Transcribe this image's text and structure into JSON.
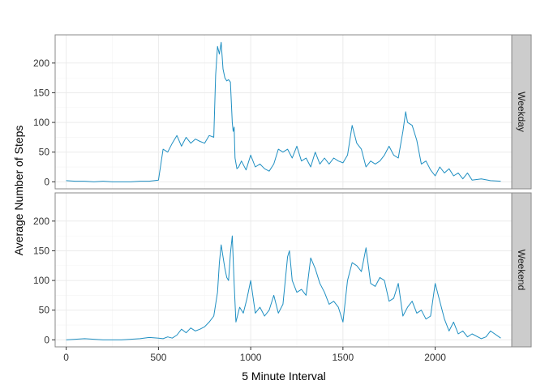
{
  "chart_data": {
    "type": "line",
    "title": "",
    "xlabel": "5 Minute Interval",
    "ylabel": "Average Number of Steps",
    "xlim": [
      -60,
      2415
    ],
    "ylim": [
      -11.8,
      247.5
    ],
    "xticks": [
      0,
      500,
      1000,
      1500,
      2000
    ],
    "yticks": [
      0,
      50,
      100,
      150,
      200
    ],
    "grid": true,
    "legend": "none",
    "colors": {
      "line": "#1f8fc2",
      "strip": "#cccccc",
      "panel_border": "#888888",
      "grid": "#ebebeb"
    },
    "panels": [
      {
        "label": "Weekday",
        "x": [
          0,
          50,
          100,
          150,
          200,
          250,
          300,
          350,
          400,
          450,
          500,
          525,
          550,
          575,
          600,
          625,
          650,
          675,
          700,
          725,
          750,
          775,
          800,
          810,
          820,
          830,
          840,
          850,
          860,
          870,
          880,
          890,
          900,
          905,
          910,
          915,
          925,
          935,
          950,
          975,
          1000,
          1025,
          1050,
          1075,
          1100,
          1125,
          1150,
          1175,
          1200,
          1225,
          1250,
          1275,
          1300,
          1325,
          1350,
          1375,
          1400,
          1425,
          1450,
          1475,
          1500,
          1525,
          1550,
          1575,
          1600,
          1625,
          1650,
          1675,
          1700,
          1725,
          1750,
          1775,
          1800,
          1825,
          1840,
          1850,
          1875,
          1900,
          1925,
          1950,
          1975,
          2000,
          2025,
          2050,
          2075,
          2100,
          2125,
          2150,
          2175,
          2200,
          2250,
          2300,
          2355
        ],
        "y": [
          2,
          1,
          1,
          0,
          1,
          0,
          0,
          0,
          1,
          1,
          3,
          55,
          50,
          65,
          78,
          60,
          75,
          65,
          72,
          68,
          65,
          78,
          75,
          180,
          228,
          215,
          235,
          190,
          175,
          170,
          172,
          168,
          100,
          85,
          92,
          40,
          22,
          25,
          35,
          20,
          45,
          25,
          30,
          22,
          18,
          30,
          55,
          50,
          55,
          40,
          60,
          35,
          40,
          25,
          50,
          30,
          40,
          30,
          40,
          35,
          32,
          45,
          95,
          65,
          55,
          25,
          35,
          30,
          35,
          45,
          60,
          45,
          40,
          85,
          118,
          100,
          95,
          70,
          30,
          35,
          20,
          10,
          25,
          15,
          22,
          10,
          15,
          5,
          15,
          3,
          5,
          2,
          1
        ]
      },
      {
        "label": "Weekend",
        "x": [
          0,
          50,
          100,
          150,
          200,
          250,
          300,
          350,
          400,
          450,
          500,
          525,
          550,
          575,
          600,
          625,
          650,
          675,
          700,
          725,
          750,
          775,
          800,
          820,
          830,
          840,
          850,
          860,
          870,
          880,
          890,
          900,
          910,
          920,
          940,
          960,
          980,
          1000,
          1025,
          1050,
          1075,
          1100,
          1125,
          1150,
          1175,
          1200,
          1210,
          1225,
          1250,
          1275,
          1300,
          1325,
          1350,
          1375,
          1400,
          1425,
          1450,
          1475,
          1500,
          1525,
          1550,
          1575,
          1600,
          1625,
          1650,
          1675,
          1700,
          1725,
          1750,
          1775,
          1800,
          1825,
          1850,
          1875,
          1900,
          1925,
          1950,
          1975,
          2000,
          2025,
          2050,
          2075,
          2100,
          2125,
          2150,
          2175,
          2200,
          2250,
          2275,
          2300,
          2355
        ],
        "y": [
          0,
          1,
          2,
          1,
          0,
          0,
          0,
          1,
          2,
          4,
          3,
          2,
          5,
          3,
          8,
          18,
          12,
          20,
          15,
          18,
          22,
          30,
          40,
          80,
          130,
          160,
          140,
          120,
          105,
          100,
          145,
          175,
          95,
          30,
          55,
          45,
          70,
          100,
          45,
          55,
          40,
          50,
          75,
          45,
          60,
          140,
          150,
          100,
          80,
          85,
          75,
          138,
          120,
          95,
          80,
          60,
          65,
          55,
          30,
          100,
          130,
          125,
          115,
          155,
          95,
          90,
          105,
          100,
          65,
          70,
          95,
          40,
          55,
          65,
          45,
          50,
          35,
          40,
          95,
          65,
          35,
          15,
          30,
          10,
          15,
          5,
          10,
          2,
          5,
          15,
          3
        ]
      }
    ]
  }
}
